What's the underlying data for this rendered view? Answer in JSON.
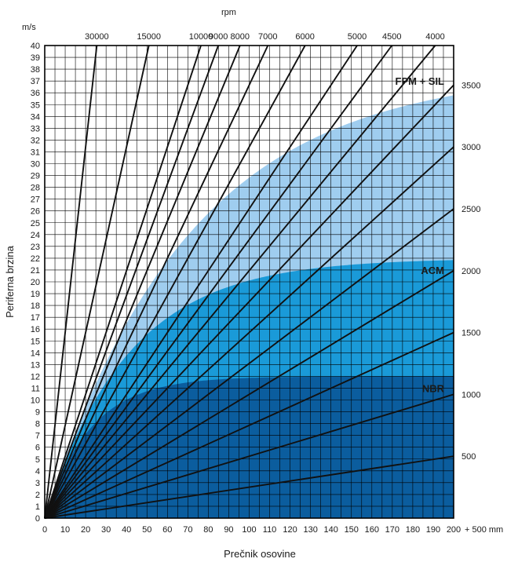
{
  "chart_data": {
    "type": "line",
    "xlabel": "Prečnik osovine",
    "ylabel": "Periferna brzina",
    "y_unit": "m/s",
    "top_axis_label": "rpm",
    "x_unit_suffix": "+ 500 mm",
    "xlim": [
      0,
      200
    ],
    "ylim": [
      0,
      40
    ],
    "x_ticks": [
      0,
      10,
      20,
      30,
      40,
      50,
      60,
      70,
      80,
      90,
      100,
      110,
      120,
      130,
      140,
      150,
      160,
      170,
      180,
      190,
      200
    ],
    "y_ticks": [
      0,
      1,
      2,
      3,
      4,
      5,
      6,
      7,
      8,
      9,
      10,
      11,
      12,
      13,
      14,
      15,
      16,
      17,
      18,
      19,
      20,
      21,
      22,
      23,
      24,
      25,
      26,
      27,
      28,
      29,
      30,
      31,
      32,
      33,
      34,
      35,
      36,
      37,
      38,
      39,
      40
    ],
    "grid": true,
    "regions": [
      {
        "name": "FPM + SIL",
        "color": "#9fcdef",
        "max_speed": 38
      },
      {
        "name": "ACM",
        "color": "#1a9ad8",
        "max_speed": 22
      },
      {
        "name": "NBR",
        "color": "#0b5d9e",
        "max_speed": 12
      }
    ],
    "series": [
      {
        "rpm": 30000,
        "label": "30000",
        "label_side": "top"
      },
      {
        "rpm": 15000,
        "label": "15000",
        "label_side": "top"
      },
      {
        "rpm": 10000,
        "label": "10000",
        "label_side": "top"
      },
      {
        "rpm": 9000,
        "label": "9000",
        "label_side": "top"
      },
      {
        "rpm": 8000,
        "label": "8000",
        "label_side": "top"
      },
      {
        "rpm": 7000,
        "label": "7000",
        "label_side": "top"
      },
      {
        "rpm": 6000,
        "label": "6000",
        "label_side": "top"
      },
      {
        "rpm": 5000,
        "label": "5000",
        "label_side": "top"
      },
      {
        "rpm": 4500,
        "label": "4500",
        "label_side": "top"
      },
      {
        "rpm": 4000,
        "label": "4000",
        "label_side": "top"
      },
      {
        "rpm": 3500,
        "label": "3500",
        "label_side": "right"
      },
      {
        "rpm": 3000,
        "label": "3000",
        "label_side": "right"
      },
      {
        "rpm": 2500,
        "label": "2500",
        "label_side": "right"
      },
      {
        "rpm": 2000,
        "label": "2000",
        "label_side": "right"
      },
      {
        "rpm": 1500,
        "label": "1500",
        "label_side": "right"
      },
      {
        "rpm": 1000,
        "label": "1000",
        "label_side": "right"
      },
      {
        "rpm": 500,
        "label": "500",
        "label_side": "right"
      }
    ]
  }
}
